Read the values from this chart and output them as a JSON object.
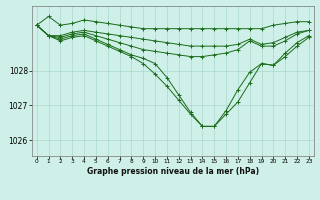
{
  "title": "Graphe pression niveau de la mer (hPa)",
  "background_color": "#cff0e8",
  "grid_color": "#aad8cc",
  "line_color": "#1a6b1a",
  "x_ticks": [
    0,
    1,
    2,
    3,
    4,
    5,
    6,
    7,
    8,
    9,
    10,
    11,
    12,
    13,
    14,
    15,
    16,
    17,
    18,
    19,
    20,
    21,
    22,
    23
  ],
  "y_ticks": [
    1026,
    1027,
    1028
  ],
  "ylim": [
    1025.55,
    1029.85
  ],
  "xlim": [
    -0.4,
    23.4
  ],
  "series": [
    [
      1029.3,
      1029.55,
      1029.3,
      1029.35,
      1029.45,
      1029.4,
      1029.35,
      1029.3,
      1029.25,
      1029.2,
      1029.2,
      1029.2,
      1029.2,
      1029.2,
      1029.2,
      1029.2,
      1029.2,
      1029.2,
      1029.2,
      1029.2,
      1029.3,
      1029.35,
      1029.4,
      1029.4
    ],
    [
      1029.3,
      1029.0,
      1029.0,
      1029.1,
      1029.15,
      1029.1,
      1029.05,
      1029.0,
      1028.95,
      1028.9,
      1028.85,
      1028.8,
      1028.75,
      1028.7,
      1028.7,
      1028.7,
      1028.7,
      1028.75,
      1028.9,
      1028.75,
      1028.8,
      1028.95,
      1029.1,
      1029.15
    ],
    [
      1029.3,
      1029.0,
      1028.95,
      1029.05,
      1029.1,
      1029.0,
      1028.9,
      1028.8,
      1028.7,
      1028.6,
      1028.55,
      1028.5,
      1028.45,
      1028.4,
      1028.4,
      1028.45,
      1028.5,
      1028.6,
      1028.85,
      1028.7,
      1028.7,
      1028.85,
      1029.05,
      1029.15
    ],
    [
      1029.3,
      1029.0,
      1028.9,
      1029.0,
      1029.05,
      1028.9,
      1028.75,
      1028.6,
      1028.45,
      1028.35,
      1028.2,
      1027.8,
      1027.3,
      1026.8,
      1026.4,
      1026.4,
      1026.85,
      1027.45,
      1027.95,
      1028.2,
      1028.15,
      1028.5,
      1028.8,
      1029.0
    ],
    [
      1029.3,
      1029.0,
      1028.85,
      1028.95,
      1029.0,
      1028.85,
      1028.7,
      1028.55,
      1028.4,
      1028.2,
      1027.9,
      1027.55,
      1027.15,
      1026.75,
      1026.4,
      1026.4,
      1026.75,
      1027.1,
      1027.65,
      1028.2,
      1028.15,
      1028.4,
      1028.7,
      1028.95
    ]
  ]
}
